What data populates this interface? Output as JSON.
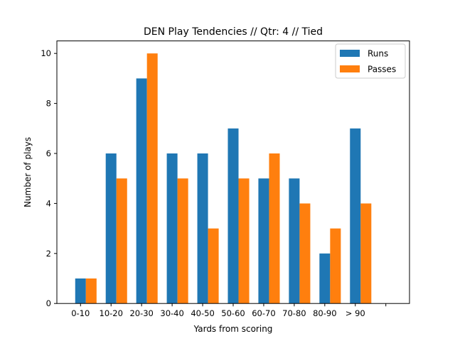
{
  "chart_data": {
    "type": "bar",
    "title": "DEN Play Tendencies // Qtr: 4 // Tied",
    "xlabel": "Yards from scoring",
    "ylabel": "Number of plays",
    "categories": [
      "0-10",
      "10-20",
      "20-30",
      "30-40",
      "40-50",
      "50-60",
      "60-70",
      "70-80",
      "80-90",
      "> 90",
      ""
    ],
    "series": [
      {
        "name": "Runs",
        "color": "#1f77b4",
        "values": [
          1,
          6,
          9,
          6,
          6,
          7,
          5,
          5,
          2,
          7,
          0
        ]
      },
      {
        "name": "Passes",
        "color": "#ff7f0e",
        "values": [
          1,
          5,
          10,
          5,
          3,
          5,
          6,
          4,
          3,
          4,
          0
        ]
      }
    ],
    "ylim": [
      0,
      10.5
    ],
    "yticks": [
      0,
      2,
      4,
      6,
      8,
      10
    ],
    "grid": false,
    "legend": "top-right"
  }
}
